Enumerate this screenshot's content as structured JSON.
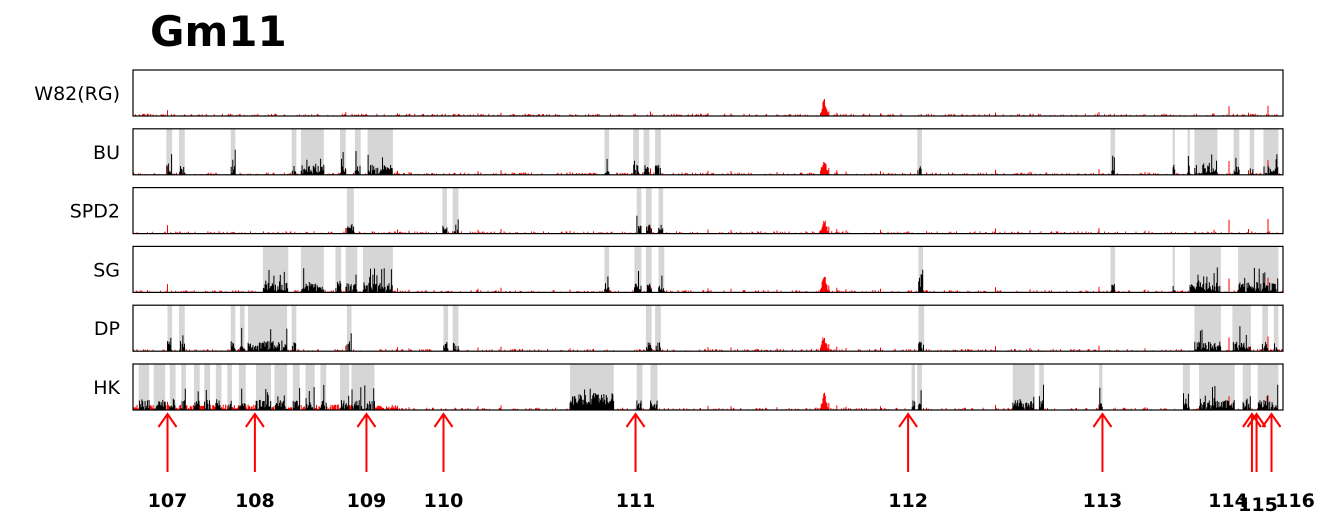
{
  "chart_data": {
    "type": "bar",
    "title": "Gm11",
    "xlabel": "",
    "ylabel": "",
    "xlim": [
      0,
      1000
    ],
    "ylim": [
      0,
      1
    ],
    "grid": false,
    "legend": "none",
    "colors": {
      "ref_signal": "#ff0000",
      "sample_signal": "#000000",
      "region": "#d6d6d6",
      "arrow": "#ff0000",
      "frame": "#000000"
    },
    "tracks": [
      {
        "name": "W82(RG)",
        "regions": []
      },
      {
        "name": "BU",
        "regions": [
          [
            29,
            34
          ],
          [
            40,
            45
          ],
          [
            85,
            89
          ],
          [
            138,
            142
          ],
          [
            146,
            166
          ],
          [
            180,
            185
          ],
          [
            193,
            198
          ],
          [
            204,
            226
          ],
          [
            410,
            414
          ],
          [
            435,
            440
          ],
          [
            444,
            449
          ],
          [
            454,
            459
          ],
          [
            682,
            686
          ],
          [
            850,
            854
          ],
          [
            904,
            906
          ],
          [
            917,
            919
          ],
          [
            923,
            943
          ],
          [
            957,
            962
          ],
          [
            971,
            975
          ],
          [
            983,
            996
          ]
        ]
      },
      {
        "name": "SPD2",
        "regions": [
          [
            186,
            192
          ],
          [
            269,
            273
          ],
          [
            278,
            283
          ],
          [
            438,
            442
          ],
          [
            446,
            451
          ],
          [
            457,
            461
          ]
        ]
      },
      {
        "name": "SG",
        "regions": [
          [
            113,
            135
          ],
          [
            146,
            166
          ],
          [
            176,
            181
          ],
          [
            185,
            195
          ],
          [
            200,
            226
          ],
          [
            410,
            414
          ],
          [
            436,
            442
          ],
          [
            446,
            451
          ],
          [
            457,
            462
          ],
          [
            683,
            687
          ],
          [
            850,
            854
          ],
          [
            904,
            906
          ],
          [
            919,
            946
          ],
          [
            961,
            996
          ]
        ]
      },
      {
        "name": "DP",
        "regions": [
          [
            30,
            34
          ],
          [
            40,
            45
          ],
          [
            85,
            89
          ],
          [
            93,
            97
          ],
          [
            100,
            134
          ],
          [
            138,
            142
          ],
          [
            186,
            190
          ],
          [
            270,
            274
          ],
          [
            278,
            283
          ],
          [
            446,
            451
          ],
          [
            454,
            459
          ],
          [
            683,
            688
          ],
          [
            923,
            946
          ],
          [
            956,
            972
          ],
          [
            982,
            987
          ],
          [
            992,
            996
          ]
        ]
      },
      {
        "name": "HK",
        "regions": [
          [
            5,
            14
          ],
          [
            18,
            28
          ],
          [
            32,
            37
          ],
          [
            42,
            46
          ],
          [
            53,
            58
          ],
          [
            62,
            67
          ],
          [
            72,
            77
          ],
          [
            82,
            86
          ],
          [
            92,
            98
          ],
          [
            107,
            120
          ],
          [
            123,
            134
          ],
          [
            139,
            145
          ],
          [
            150,
            158
          ],
          [
            163,
            168
          ],
          [
            180,
            188
          ],
          [
            190,
            210
          ],
          [
            380,
            418
          ],
          [
            438,
            443
          ],
          [
            450,
            456
          ],
          [
            677,
            680
          ],
          [
            682,
            686
          ],
          [
            765,
            784
          ],
          [
            788,
            792
          ],
          [
            840,
            843
          ],
          [
            913,
            919
          ],
          [
            927,
            958
          ],
          [
            965,
            972
          ],
          [
            978,
            996
          ]
        ]
      }
    ],
    "peaks_ref": [
      [
        30,
        0.18
      ],
      [
        185,
        0.12
      ],
      [
        230,
        0.09
      ],
      [
        240,
        0.06
      ],
      [
        300,
        0.08
      ],
      [
        320,
        0.1
      ],
      [
        380,
        0.06
      ],
      [
        450,
        0.14
      ],
      [
        500,
        0.09
      ],
      [
        520,
        0.08
      ],
      [
        560,
        0.06
      ],
      [
        600,
        0.2
      ],
      [
        605,
        0.15
      ],
      [
        612,
        0.1
      ],
      [
        620,
        0.07
      ],
      [
        650,
        0.08
      ],
      [
        690,
        0.05
      ],
      [
        750,
        0.11
      ],
      [
        780,
        0.07
      ],
      [
        840,
        0.12
      ],
      [
        880,
        0.06
      ],
      [
        940,
        0.08
      ],
      [
        953,
        0.3
      ],
      [
        970,
        0.1
      ],
      [
        987,
        0.32
      ]
    ],
    "peak_center": 601,
    "markers": [
      {
        "label": "107",
        "x": 30
      },
      {
        "label": "108",
        "x": 106
      },
      {
        "label": "109",
        "x": 203
      },
      {
        "label": "110",
        "x": 270
      },
      {
        "label": "111",
        "x": 437
      },
      {
        "label": "112",
        "x": 674
      },
      {
        "label": "113",
        "x": 843
      },
      {
        "label": "114",
        "x": 973
      },
      {
        "label": "115",
        "x": 977
      },
      {
        "label": "116",
        "x": 990
      }
    ]
  }
}
